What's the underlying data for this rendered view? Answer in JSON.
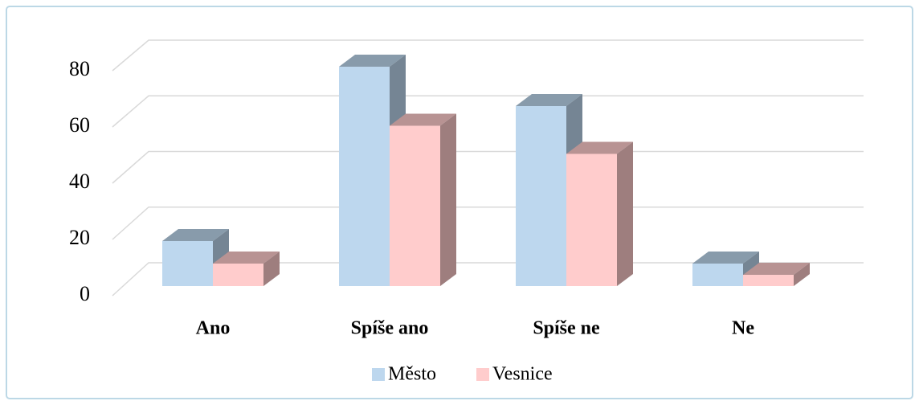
{
  "chart_data": {
    "type": "bar3d",
    "categories": [
      "Ano",
      "Spíše ano",
      "Spíše ne",
      "Ne"
    ],
    "series": [
      {
        "name": "Město",
        "color": "#bdd7ee",
        "values": [
          16,
          78,
          64,
          8
        ]
      },
      {
        "name": "Vesnice",
        "color": "#ffcccc",
        "values": [
          8,
          57,
          47,
          4
        ]
      }
    ],
    "ylim": [
      0,
      80
    ],
    "yticks": [
      0,
      20,
      40,
      60,
      80
    ],
    "grid": true,
    "legend": "bottom"
  }
}
